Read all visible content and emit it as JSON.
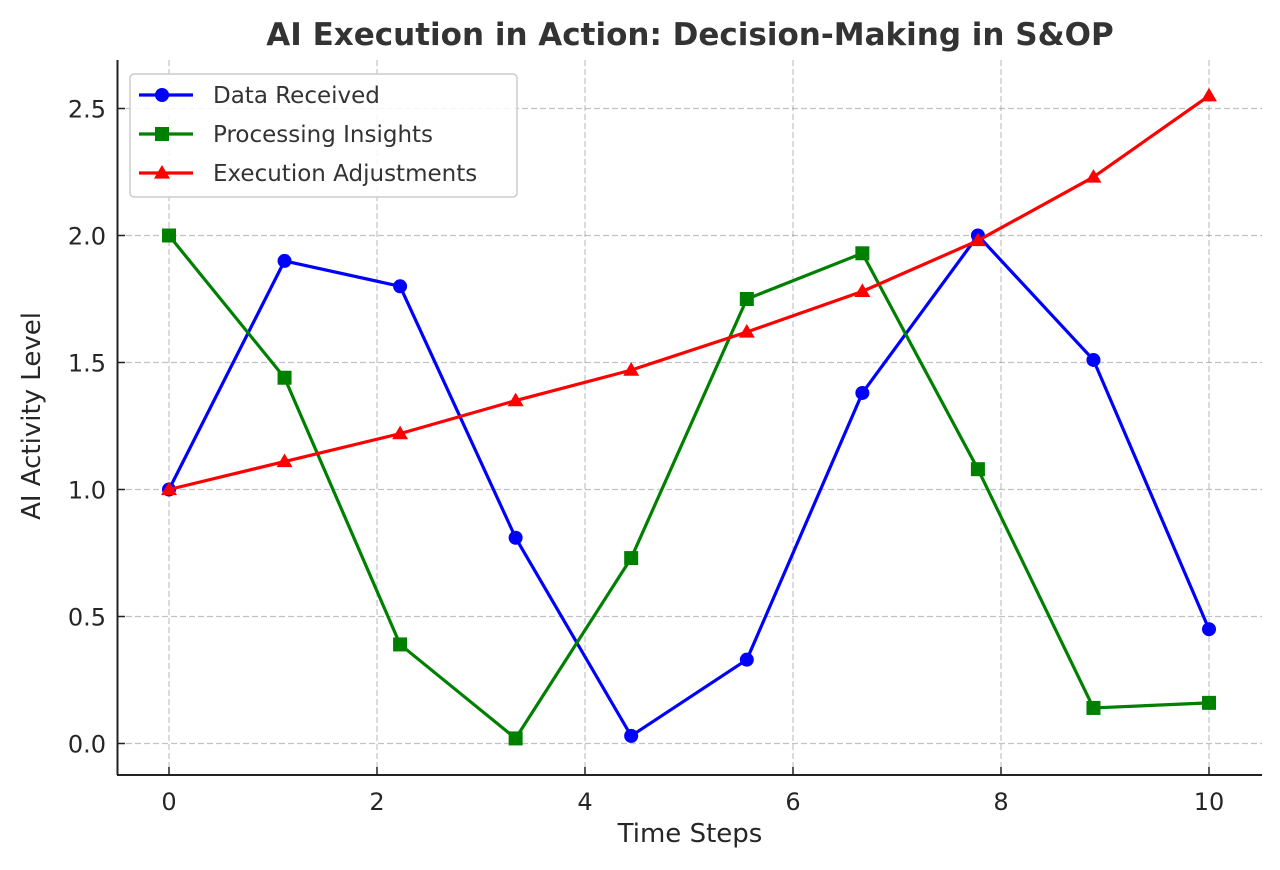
{
  "chart_data": {
    "type": "line",
    "title": "AI Execution in Action: Decision-Making in S&OP",
    "xlabel": "Time Steps",
    "ylabel": "AI Activity Level",
    "xlim": [
      -0.5,
      10.5
    ],
    "ylim": [
      -0.12,
      2.69
    ],
    "grid": true,
    "legend_position": "top-left",
    "x": [
      0,
      1.111,
      2.222,
      3.333,
      4.444,
      5.556,
      6.667,
      7.778,
      8.889,
      10
    ],
    "xticks": [
      0,
      2,
      4,
      6,
      8,
      10
    ],
    "xtick_labels": [
      "0",
      "2",
      "4",
      "6",
      "8",
      "10"
    ],
    "yticks": [
      0.0,
      0.5,
      1.0,
      1.5,
      2.0,
      2.5
    ],
    "ytick_labels": [
      "0.0",
      "0.5",
      "1.0",
      "1.5",
      "2.0",
      "2.5"
    ],
    "series": [
      {
        "name": "Data Received",
        "color": "#0000ff",
        "marker": "circle",
        "values": [
          1.0,
          1.9,
          1.8,
          0.81,
          0.03,
          0.33,
          1.38,
          2.0,
          1.51,
          0.45
        ]
      },
      {
        "name": "Processing Insights",
        "color": "#008000",
        "marker": "square",
        "values": [
          2.0,
          1.44,
          0.39,
          0.02,
          0.73,
          1.75,
          1.93,
          1.08,
          0.14,
          0.16
        ]
      },
      {
        "name": "Execution Adjustments",
        "color": "#ff0000",
        "marker": "triangle",
        "values": [
          1.0,
          1.11,
          1.22,
          1.35,
          1.47,
          1.62,
          1.78,
          1.98,
          2.23,
          2.55
        ]
      }
    ]
  }
}
